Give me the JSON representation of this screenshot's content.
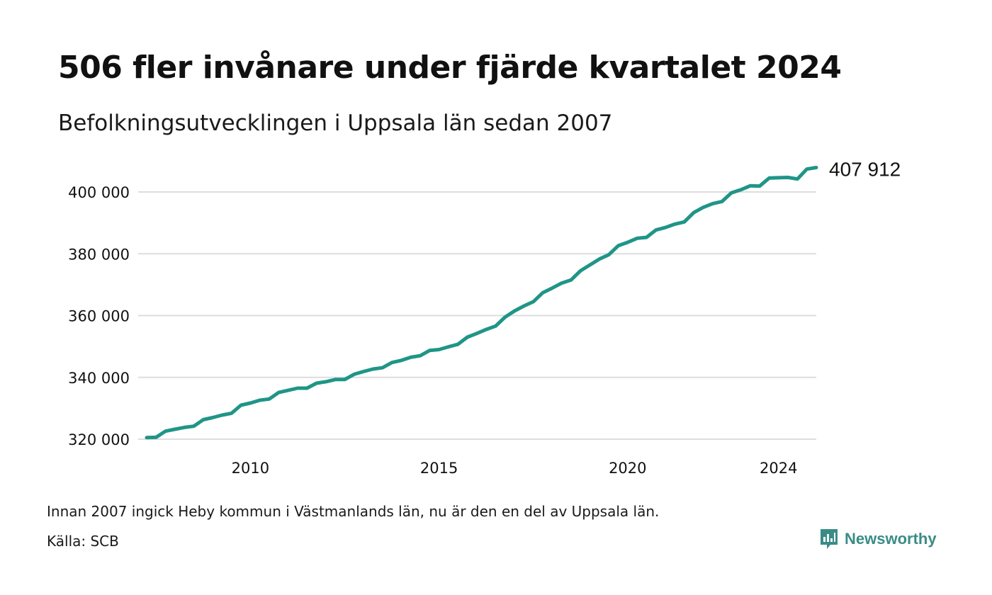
{
  "title": "506 fler invånare under fjärde kvartalet 2024",
  "subtitle": "Befolkningsutvecklingen i Uppsala län sedan 2007",
  "footnote": "Innan 2007 ingick Heby kommun i Västmanlands län, nu är den en del av Uppsala län.",
  "source": "Källa: SCB",
  "brand": {
    "name": "Newsworthy",
    "icon": "newsworthy-logo-icon",
    "color": "#3a8c86"
  },
  "colors": {
    "line": "#1f9587",
    "grid": "#dddddd"
  },
  "chart_data": {
    "type": "line",
    "title": "506 fler invånare under fjärde kvartalet 2024",
    "subtitle": "Befolkningsutvecklingen i Uppsala län sedan 2007",
    "x_unit": "year (quarterly)",
    "ylim": [
      318000,
      411000
    ],
    "yticks": [
      320000,
      340000,
      360000,
      380000,
      400000
    ],
    "ytick_labels": [
      "320 000",
      "340 000",
      "360 000",
      "380 000",
      "400 000"
    ],
    "xticks": [
      2010,
      2015,
      2020,
      2024
    ],
    "xtick_labels": [
      "2010",
      "2015",
      "2020",
      "2024"
    ],
    "grid": "horizontal",
    "end_label": "407 912",
    "series": [
      {
        "x": [
          2007.25,
          2007.5,
          2007.75,
          2008.0,
          2008.25,
          2008.5,
          2008.75,
          2009.0,
          2009.25,
          2009.5,
          2009.75,
          2010.0,
          2010.25,
          2010.5,
          2010.75,
          2011.0,
          2011.25,
          2011.5,
          2011.75,
          2012.0,
          2012.25,
          2012.5,
          2012.75,
          2013.0,
          2013.25,
          2013.5,
          2013.75,
          2014.0,
          2014.25,
          2014.5,
          2014.75,
          2015.0,
          2015.25,
          2015.5,
          2015.75,
          2016.0,
          2016.25,
          2016.5,
          2016.75,
          2017.0,
          2017.25,
          2017.5,
          2017.75,
          2018.0,
          2018.25,
          2018.5,
          2018.75,
          2019.0,
          2019.25,
          2019.5,
          2019.75,
          2020.0,
          2020.25,
          2020.5,
          2020.75,
          2021.0,
          2021.25,
          2021.5,
          2021.75,
          2022.0,
          2022.25,
          2022.5,
          2022.75,
          2023.0,
          2023.25,
          2023.5,
          2023.75,
          2024.0,
          2024.25,
          2024.5,
          2024.75,
          2025.0
        ],
        "values": [
          320500,
          320600,
          322600,
          323200,
          323800,
          324200,
          326300,
          327000,
          327800,
          328400,
          331000,
          331700,
          332600,
          333000,
          335100,
          335800,
          336500,
          336500,
          338100,
          338600,
          339300,
          339300,
          341000,
          341900,
          342700,
          343100,
          344800,
          345500,
          346500,
          347000,
          348700,
          349000,
          349900,
          350700,
          353000,
          354200,
          355500,
          356600,
          359500,
          361500,
          363100,
          364500,
          367400,
          368900,
          370500,
          371500,
          374500,
          376400,
          378300,
          379700,
          382600,
          383700,
          385000,
          385300,
          387700,
          388500,
          389600,
          390300,
          393300,
          395000,
          396200,
          396900,
          399700,
          400700,
          402000,
          401900,
          404500,
          404600,
          404700,
          404200,
          407400,
          407912
        ]
      }
    ]
  }
}
